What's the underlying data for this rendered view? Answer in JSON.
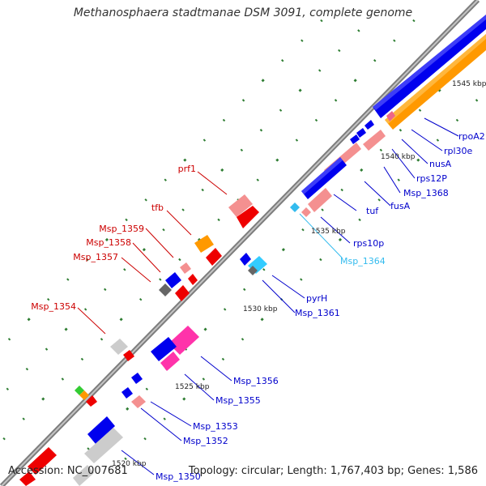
{
  "title": "Methanosphaera stadtmanae DSM 3091, complete genome",
  "footer": {
    "accession": "Accession: NC_007681",
    "topology": "Topology: circular; Length: 1,767,403 bp; Genes: 1,586"
  },
  "colors": {
    "backbone": "#8c8c8c",
    "tick": "#2e7d32",
    "forward_label": "#cc0000",
    "reverse_label": "#0000cc",
    "rna_label": "#33bbee"
  },
  "ticks": [
    {
      "label": "1520 kbp"
    },
    {
      "label": "1525 kbp"
    },
    {
      "label": "1530 kbp"
    },
    {
      "label": "1535 kbp"
    },
    {
      "label": "1540 kbp"
    },
    {
      "label": "1545 kbp"
    }
  ],
  "labels_forward": [
    {
      "text": "prf1"
    },
    {
      "text": "tfb"
    },
    {
      "text": "Msp_1359"
    },
    {
      "text": "Msp_1358"
    },
    {
      "text": "Msp_1357"
    },
    {
      "text": "Msp_1354"
    }
  ],
  "labels_reverse": [
    {
      "text": "rpoA2"
    },
    {
      "text": "rpl30e"
    },
    {
      "text": "nusA"
    },
    {
      "text": "rps12P"
    },
    {
      "text": "Msp_1368"
    },
    {
      "text": "fusA"
    },
    {
      "text": "tuf"
    },
    {
      "text": "rps10p"
    },
    {
      "text": "Msp_1364"
    },
    {
      "text": "pyrH"
    },
    {
      "text": "Msp_1361"
    },
    {
      "text": "Msp_1356"
    },
    {
      "text": "Msp_1355"
    },
    {
      "text": "Msp_1353"
    },
    {
      "text": "Msp_1352"
    },
    {
      "text": "Msp_1350"
    }
  ]
}
